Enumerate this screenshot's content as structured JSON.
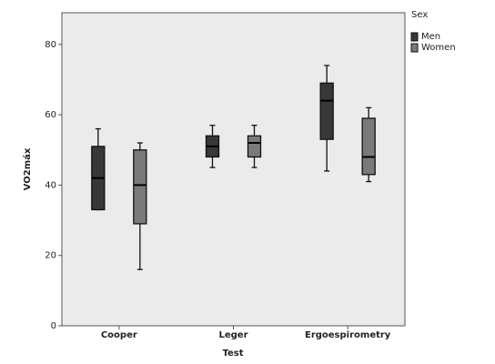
{
  "chart_data": {
    "type": "box",
    "x_label": "Test",
    "y_label": "VO2máx",
    "categories": [
      "Cooper",
      "Leger",
      "Ergoespirometry"
    ],
    "legend_title": "Sex",
    "legend_position": "outside right top",
    "ylim": [
      0,
      89
    ],
    "yticks": [
      0,
      20,
      40,
      60,
      80
    ],
    "series": [
      {
        "name": "Men",
        "color": "#383838",
        "values": [
          {
            "min": 33,
            "q1": 33,
            "median": 42,
            "q3": 51,
            "max": 56
          },
          {
            "min": 45,
            "q1": 48,
            "median": 51,
            "q3": 54,
            "max": 57
          },
          {
            "min": 44,
            "q1": 53,
            "median": 64,
            "q3": 69,
            "max": 74
          }
        ]
      },
      {
        "name": "Women",
        "color": "#7a7a7a",
        "values": [
          {
            "min": 16,
            "q1": 29,
            "median": 40,
            "q3": 50,
            "max": 52
          },
          {
            "min": 45,
            "q1": 48,
            "median": 52,
            "q3": 54,
            "max": 57
          },
          {
            "min": 41,
            "q1": 43,
            "median": 48,
            "q3": 59,
            "max": 62
          }
        ]
      }
    ]
  }
}
